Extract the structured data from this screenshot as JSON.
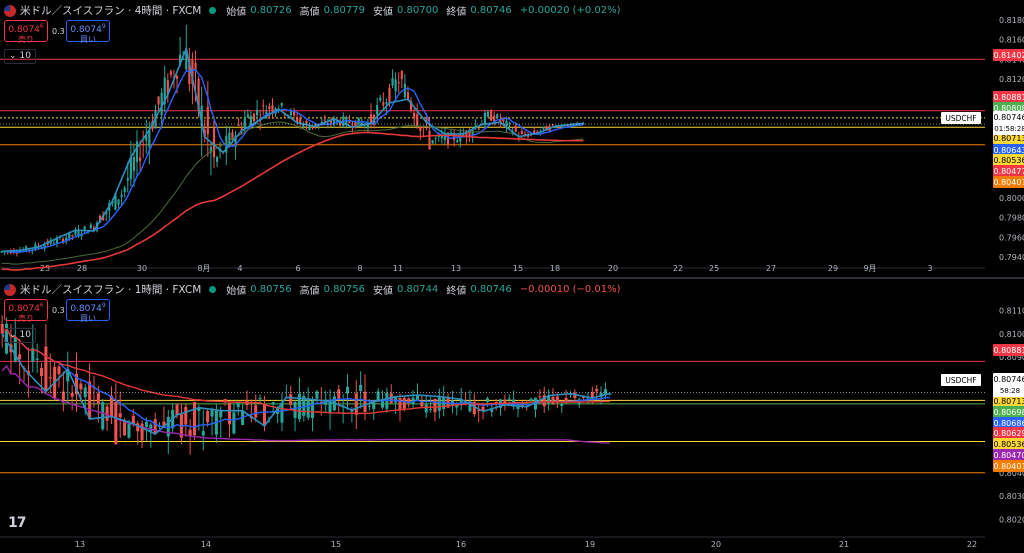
{
  "colors": {
    "up": "#26a69a",
    "down": "#ef5350",
    "ma_blue": "#2962ff",
    "ma_red": "#e53935",
    "ma_green": "#4b6b3a",
    "ma_purple": "#9c27b0",
    "zigzag": "#2b8fbf"
  },
  "panes": [
    {
      "legend": {
        "symbol": "米ドル／スイスフラン · 4時間 · FXCM",
        "open_label": "始値",
        "open": "0.80726",
        "high_label": "高値",
        "high": "0.80779",
        "low_label": "安値",
        "low": "0.80700",
        "close_label": "終値",
        "close": "0.80746",
        "change": "+0.00020 (+0.02%)"
      },
      "trade": {
        "sell_price": "0.8074",
        "sell_sup": "6",
        "sell_label": "売り",
        "spread": "0.3",
        "buy_price": "0.8074",
        "buy_sup": "9",
        "buy_label": "買い"
      },
      "indicator_count": "10",
      "price_scale": [
        "0.81800",
        "0.81600",
        "0.81400",
        "0.81200",
        "0.81000",
        "0.80800",
        "0.80600",
        "0.80400",
        "0.80200",
        "0.80000",
        "0.79800",
        "0.79600",
        "0.79400"
      ],
      "date_ticks": [
        "25",
        "28",
        "30",
        "8月",
        "4",
        "6",
        "8",
        "11",
        "13",
        "15",
        "18",
        "20",
        "22",
        "25",
        "27",
        "29",
        "9月",
        "3"
      ],
      "symbol_tag": "USDCHF",
      "current_price": "0.80746",
      "countdown": "01:58:28",
      "price_tags": [
        {
          "value": "0.81402",
          "color": "#f23645"
        },
        {
          "value": "0.80881",
          "color": "#f23645"
        },
        {
          "value": "0.80808",
          "color": "#4caf50"
        },
        {
          "value": "0.80713",
          "color": "#fdd835"
        },
        {
          "value": "0.80643",
          "color": "#2962ff"
        },
        {
          "value": "0.80536",
          "color": "#fdd835"
        },
        {
          "value": "0.80477",
          "color": "#f23645"
        },
        {
          "value": "0.80401",
          "color": "#f57c00"
        }
      ],
      "chart_data": {
        "type": "candlestick",
        "x": [
          "7/24",
          "7/25",
          "7/28",
          "7/29",
          "7/30",
          "7/31",
          "8/1",
          "8/4",
          "8/5",
          "8/6",
          "8/7",
          "8/8",
          "8/11",
          "8/12",
          "8/13",
          "8/14",
          "8/15",
          "8/18",
          "8/19"
        ],
        "ohlc": [
          [
            0.7945,
            0.7955,
            0.7938,
            0.7948
          ],
          [
            0.7948,
            0.7962,
            0.794,
            0.7958
          ],
          [
            0.7958,
            0.7975,
            0.795,
            0.797
          ],
          [
            0.797,
            0.801,
            0.7965,
            0.8005
          ],
          [
            0.8005,
            0.8085,
            0.8,
            0.808
          ],
          [
            0.808,
            0.8165,
            0.807,
            0.815
          ],
          [
            0.815,
            0.8175,
            0.802,
            0.8035
          ],
          [
            0.8035,
            0.809,
            0.8025,
            0.808
          ],
          [
            0.808,
            0.811,
            0.806,
            0.8095
          ],
          [
            0.8095,
            0.81,
            0.8065,
            0.8072
          ],
          [
            0.8072,
            0.8085,
            0.806,
            0.8078
          ],
          [
            0.8078,
            0.8092,
            0.8062,
            0.8075
          ],
          [
            0.8075,
            0.813,
            0.807,
            0.812
          ],
          [
            0.812,
            0.8125,
            0.805,
            0.8058
          ],
          [
            0.8058,
            0.807,
            0.8035,
            0.8062
          ],
          [
            0.8062,
            0.809,
            0.805,
            0.8084
          ],
          [
            0.8084,
            0.8088,
            0.8055,
            0.8062
          ],
          [
            0.8062,
            0.8078,
            0.8058,
            0.8072
          ],
          [
            0.8072,
            0.8078,
            0.807,
            0.80746
          ]
        ],
        "ylim": [
          0.7935,
          0.819
        ]
      }
    },
    {
      "legend": {
        "symbol": "米ドル／スイスフラン · 1時間 · FXCM",
        "open_label": "始値",
        "open": "0.80756",
        "high_label": "高値",
        "high": "0.80756",
        "low_label": "安値",
        "low": "0.80744",
        "close_label": "終値",
        "close": "0.80746",
        "change": "−0.00010 (−0.01%)"
      },
      "trade": {
        "sell_price": "0.8074",
        "sell_sup": "6",
        "sell_label": "売り",
        "spread": "0.3",
        "buy_price": "0.8074",
        "buy_sup": "9",
        "buy_label": "買い"
      },
      "indicator_count": "10",
      "price_scale": [
        "0.81100",
        "0.81000",
        "0.80900",
        "0.80800",
        "0.80700",
        "0.80600",
        "0.80500",
        "0.80400",
        "0.80300",
        "0.80200"
      ],
      "date_ticks": [
        "13",
        "14",
        "15",
        "16",
        "19",
        "20",
        "21",
        "22"
      ],
      "symbol_tag": "USDCHF",
      "current_price": "0.80746",
      "countdown": "58:28",
      "price_tags": [
        {
          "value": "0.80881",
          "color": "#f23645"
        },
        {
          "value": "0.80713",
          "color": "#fdd835"
        },
        {
          "value": "0.80698",
          "color": "#4caf50"
        },
        {
          "value": "0.80686",
          "color": "#2962ff"
        },
        {
          "value": "0.80629",
          "color": "#f23645"
        },
        {
          "value": "0.80536",
          "color": "#fdd835"
        },
        {
          "value": "0.80470",
          "color": "#9c27b0"
        },
        {
          "value": "0.80401",
          "color": "#f57c00"
        }
      ],
      "chart_data": {
        "type": "candlestick",
        "x": [
          "8/13",
          "8/14",
          "8/15",
          "8/16",
          "8/19"
        ],
        "ohlc": [
          [
            0.81,
            0.8108,
            0.8055,
            0.806
          ],
          [
            0.806,
            0.807,
            0.8025,
            0.8065
          ],
          [
            0.8065,
            0.8095,
            0.8058,
            0.8072
          ],
          [
            0.8072,
            0.808,
            0.8055,
            0.8068
          ],
          [
            0.8068,
            0.808,
            0.8062,
            0.80746
          ]
        ],
        "ylim": [
          0.8015,
          0.8115
        ]
      }
    }
  ],
  "logo": "17"
}
